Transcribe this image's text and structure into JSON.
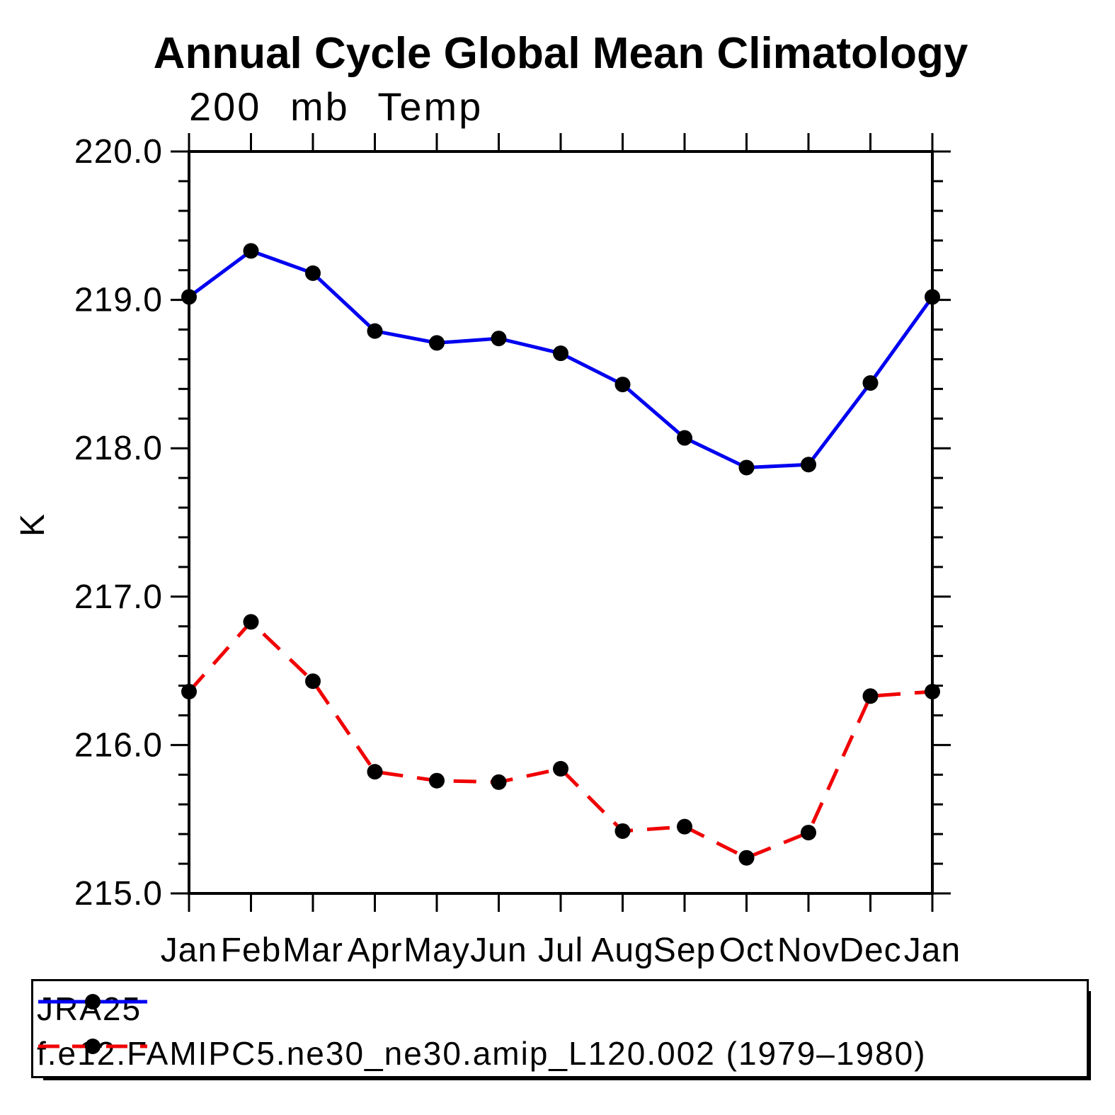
{
  "page": {
    "background": "#ffffff"
  },
  "chart_data": {
    "type": "line",
    "title": "Annual Cycle Global Mean Climatology",
    "subtitle": "200 mb Temp",
    "xlabel": "",
    "ylabel": "K",
    "ylim": [
      215.0,
      220.0
    ],
    "ytick_values": [
      220.0,
      219.0,
      218.0,
      217.0,
      216.0,
      215.0
    ],
    "ytick_labels": [
      "220.0",
      "219.0",
      "218.0",
      "217.0",
      "216.0",
      "215.0"
    ],
    "yminor_step": 0.2,
    "grid": false,
    "categories": [
      "Jan",
      "Feb",
      "Mar",
      "Apr",
      "May",
      "Jun",
      "Jul",
      "Aug",
      "Sep",
      "Oct",
      "Nov",
      "Dec",
      "Jan"
    ],
    "legend_position": "bottom-outside-framed",
    "series": [
      {
        "name": "JRA25",
        "color": "#0000f0",
        "line_style": "solid",
        "marker": "filled-circle",
        "marker_color": "#000000",
        "values": [
          219.02,
          219.33,
          219.18,
          218.79,
          218.71,
          218.74,
          218.64,
          218.43,
          218.07,
          217.87,
          217.89,
          218.44,
          219.02
        ]
      },
      {
        "name": "f.e12.FAMIPC5.ne30_ne30.amip_L120.002 (1979–1980)",
        "color": "#f00000",
        "line_style": "dashed",
        "marker": "filled-circle",
        "marker_color": "#000000",
        "values": [
          216.36,
          216.83,
          216.43,
          215.82,
          215.76,
          215.75,
          215.84,
          215.42,
          215.45,
          215.24,
          215.41,
          216.33,
          216.36
        ]
      }
    ]
  }
}
